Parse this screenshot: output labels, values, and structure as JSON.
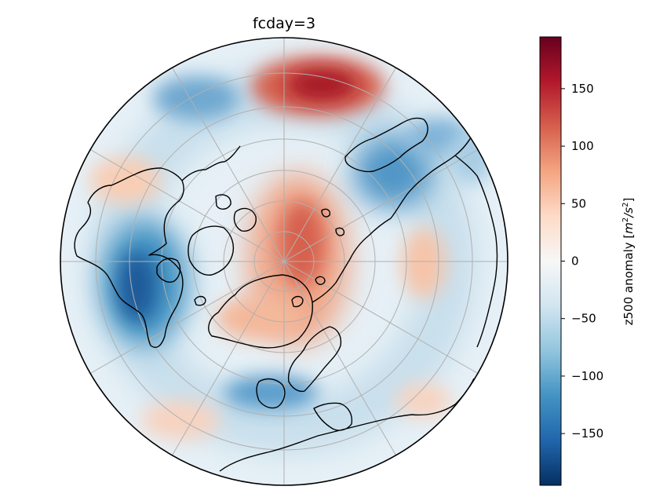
{
  "title": "fcday=3",
  "map": {
    "projection": "north-polar-stereographic",
    "field": "z500 anomaly",
    "gridlines": true,
    "coastlines": true,
    "anomaly_features": [
      {
        "region": "top-center",
        "sign": "positive",
        "peak": 190
      },
      {
        "region": "pole-greenland",
        "sign": "positive",
        "peak": 110
      },
      {
        "region": "north-america",
        "sign": "negative",
        "peak": -170
      },
      {
        "region": "top-left",
        "sign": "negative",
        "peak": -110
      },
      {
        "region": "east-asia",
        "sign": "negative",
        "peak": -130
      },
      {
        "region": "europe",
        "sign": "negative",
        "peak": -110
      },
      {
        "region": "central-asia",
        "sign": "positive",
        "peak": 55
      },
      {
        "region": "left",
        "sign": "positive",
        "peak": 50
      }
    ]
  },
  "colorbar": {
    "label": "z500 anomaly [m²/s²]",
    "label_text": "z500 anomaly [",
    "label_units": "m",
    "label_units2": "/s",
    "label_exp": "2",
    "label_close": "]",
    "colormap": "RdBu_r",
    "range": [
      -195,
      195
    ],
    "ticks": [
      "150",
      "100",
      "50",
      "0",
      "−50",
      "−100",
      "−150"
    ]
  }
}
